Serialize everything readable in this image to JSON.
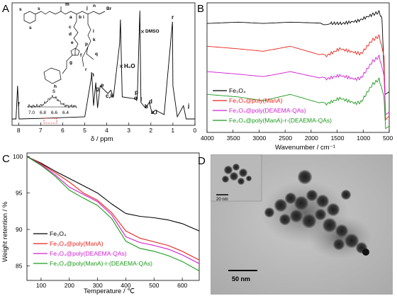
{
  "panels": {
    "A": {
      "label": "A",
      "xlabel": "δ / ppm",
      "xticks": [
        "8",
        "7",
        "6",
        "5",
        "4",
        "3",
        "2",
        "1",
        "0"
      ],
      "peak_labels": [
        "f",
        "h",
        "g",
        "e",
        "c,k",
        "H₂O",
        "DMSO",
        "p",
        "q",
        "l",
        "b",
        "d",
        "a,i",
        "r",
        "j"
      ],
      "inset": {
        "peak": "s",
        "ticks": [
          "7.0",
          "6.8",
          "6.6",
          "6.4"
        ]
      },
      "structure_labels": [
        "s",
        "s",
        "s",
        "a",
        "b",
        "c",
        "d",
        "e",
        "f",
        "g",
        "h",
        "i",
        "j",
        "k",
        "l",
        "p",
        "q",
        "r",
        "m",
        "n",
        "Br"
      ]
    },
    "B": {
      "label": "B",
      "xlabel": "Wavenumber / cm⁻¹",
      "xticks": [
        "4000",
        "3500",
        "3000",
        "2500",
        "2000",
        "1500",
        "1000",
        "500"
      ],
      "legend": [
        "Fe₃O₄",
        "Fe₃O₄@poly(ManA)",
        "Fe₃O₄@poly(DEAEMA-QAs)",
        "Fe₃O₄@poly(ManA)-r-(DEAEMA-QAs)"
      ],
      "colors": [
        "#000000",
        "#e8231a",
        "#d21ed2",
        "#1a9a1a"
      ]
    },
    "C": {
      "label": "C",
      "xlabel": "Temperature / ℃",
      "ylabel": "Weight retention / %",
      "xticks": [
        "100",
        "200",
        "300",
        "400",
        "500",
        "600"
      ],
      "yticks": [
        "100",
        "95",
        "90",
        "85"
      ],
      "legend": [
        "Fe₃O₄",
        "Fe₃O₄@poly(ManA)",
        "Fe₃O₄@poly(DEAEMA-QAs)",
        "Fe₃O₄@poly(ManA)-r-(DEAEMA-QAs)"
      ],
      "colors": [
        "#000000",
        "#e8231a",
        "#d21ed2",
        "#1a9a1a"
      ]
    },
    "D": {
      "label": "D",
      "scale_main": "50 nm",
      "scale_inset": "20 nm"
    }
  },
  "chart_data": [
    {
      "type": "line",
      "title": "",
      "xlabel": "δ / ppm",
      "ylabel": "",
      "xlim": [
        8.3,
        0
      ],
      "series": [
        {
          "x": [
            8.3,
            8.12,
            8.05,
            7.98,
            7.0,
            5.0,
            4.68,
            4.6,
            4.5,
            4.42,
            4.3,
            3.95,
            3.82,
            3.7,
            3.42,
            3.38,
            3.3,
            2.62,
            2.5,
            2.45,
            2.25,
            2.07,
            1.95,
            1.8,
            1.4,
            1.02,
            1.0,
            0.8,
            0.52,
            0.4,
            0
          ],
          "y": [
            0,
            0,
            0.3,
            0,
            0.005,
            0.02,
            0.4,
            0.12,
            0.33,
            0.1,
            0.3,
            0.23,
            0.26,
            0.2,
            0.68,
            0.9,
            0.2,
            0.18,
            0.98,
            0.15,
            0.1,
            0.15,
            0.05,
            0.08,
            0.04,
            0.88,
            0.3,
            0.02,
            0.12,
            0,
            0
          ]
        }
      ]
    },
    {
      "type": "line",
      "title": "",
      "xlabel": "Wavenumber / cm⁻¹",
      "ylabel": "",
      "xlim": [
        4000,
        500
      ],
      "series": [
        {
          "name": "Fe₃O₄",
          "x": [
            4000,
            3400,
            2920,
            2400,
            1630,
            1400,
            1100,
            820,
            690,
            640,
            580,
            500
          ],
          "y": [
            0.86,
            0.87,
            0.86,
            0.87,
            0.86,
            0.86,
            0.88,
            0.93,
            0.95,
            0.9,
            0.3,
            0.32
          ]
        },
        {
          "name": "Fe₃O₄@poly(ManA)",
          "x": [
            4000,
            3400,
            2920,
            2400,
            1730,
            1450,
            1150,
            1040,
            820,
            690,
            600,
            570,
            500
          ],
          "y": [
            0.68,
            0.66,
            0.64,
            0.68,
            0.6,
            0.66,
            0.63,
            0.62,
            0.73,
            0.76,
            0.6,
            0.1,
            0.13
          ]
        },
        {
          "name": "Fe₃O₄@poly(DEAEMA-QAs)",
          "x": [
            4000,
            3400,
            2920,
            2400,
            1730,
            1450,
            1150,
            1040,
            820,
            690,
            600,
            570,
            500
          ],
          "y": [
            0.48,
            0.46,
            0.44,
            0.48,
            0.42,
            0.45,
            0.42,
            0.43,
            0.56,
            0.6,
            0.45,
            0.14,
            0.16
          ]
        },
        {
          "name": "Fe₃O₄@poly(ManA)-r-(DEAEMA-QAs)",
          "x": [
            4000,
            3400,
            2920,
            2400,
            1730,
            1450,
            1150,
            1040,
            820,
            690,
            600,
            570,
            500
          ],
          "y": [
            0.3,
            0.28,
            0.25,
            0.3,
            0.22,
            0.27,
            0.23,
            0.24,
            0.38,
            0.42,
            0.28,
            0.03,
            0.05
          ]
        }
      ]
    },
    {
      "type": "line",
      "title": "",
      "xlabel": "Temperature / ℃",
      "ylabel": "Weight retention / %",
      "xlim": [
        50,
        660
      ],
      "ylim": [
        83,
        100.5
      ],
      "series": [
        {
          "name": "Fe₃O₄",
          "x": [
            50,
            100,
            150,
            200,
            250,
            300,
            350,
            400,
            450,
            500,
            550,
            600,
            660
          ],
          "y": [
            100,
            99.1,
            98.0,
            97.0,
            96.0,
            95.0,
            93.5,
            92.2,
            91.8,
            91.6,
            91.3,
            90.8,
            89.8
          ]
        },
        {
          "name": "Fe₃O₄@poly(ManA)",
          "x": [
            50,
            100,
            150,
            200,
            250,
            300,
            350,
            400,
            450,
            500,
            550,
            600,
            660
          ],
          "y": [
            100,
            99.0,
            97.8,
            96.5,
            95.0,
            94.0,
            92.3,
            89.8,
            88.8,
            88.3,
            87.8,
            87.0,
            85.8
          ]
        },
        {
          "name": "Fe₃O₄@poly(DEAEMA-QAs)",
          "x": [
            50,
            100,
            150,
            200,
            250,
            300,
            350,
            400,
            450,
            500,
            550,
            600,
            660
          ],
          "y": [
            100,
            98.9,
            97.5,
            95.8,
            94.8,
            93.8,
            92.0,
            89.0,
            88.2,
            87.8,
            87.3,
            86.5,
            85.3
          ]
        },
        {
          "name": "Fe₃O₄@poly(ManA)-r-(DEAEMA-QAs)",
          "x": [
            50,
            100,
            150,
            200,
            250,
            300,
            350,
            400,
            450,
            500,
            550,
            600,
            660
          ],
          "y": [
            100,
            98.8,
            97.3,
            95.4,
            94.3,
            93.3,
            91.5,
            88.4,
            87.4,
            87.0,
            86.4,
            85.6,
            84.3
          ]
        }
      ]
    }
  ]
}
